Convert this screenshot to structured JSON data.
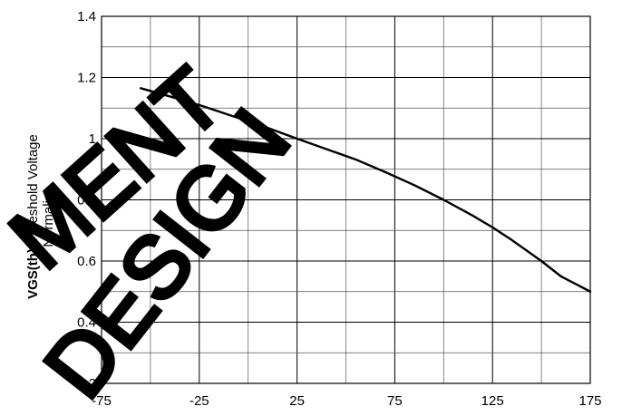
{
  "chart_data": {
    "type": "line",
    "title": "",
    "xlabel": "",
    "ylabel": {
      "bold": "VGS(th)",
      "rest": "-Threshold Voltage",
      "line2": "Normalize"
    },
    "xlim": [
      -75,
      175
    ],
    "ylim": [
      0.2,
      1.4
    ],
    "x_ticks": [
      -75,
      -25,
      25,
      75,
      125,
      175
    ],
    "x_tick_labels": [
      "-75",
      "-25",
      "25",
      "75",
      "125",
      "175"
    ],
    "y_ticks": [
      0.2,
      0.4,
      0.6,
      0.8,
      1.0,
      1.2,
      1.4
    ],
    "y_tick_labels": [
      "0.2",
      "0.4",
      "0.6",
      "0.8",
      "1",
      "1.2",
      "1.4"
    ],
    "x_grid_step": 25,
    "y_grid_step": 0.1,
    "grid": true,
    "series": [
      {
        "color": "#000000",
        "x": [
          -55,
          -40,
          -25,
          -10,
          0,
          10,
          25,
          40,
          55,
          70,
          85,
          100,
          115,
          125,
          135,
          150,
          160,
          175
        ],
        "y": [
          1.165,
          1.138,
          1.11,
          1.078,
          1.057,
          1.035,
          1.0,
          0.966,
          0.932,
          0.891,
          0.848,
          0.8,
          0.748,
          0.71,
          0.668,
          0.6,
          0.55,
          0.5
        ]
      }
    ]
  },
  "watermark": {
    "lines": [
      "MENT",
      "DESIGN"
    ],
    "color": "#000000"
  }
}
